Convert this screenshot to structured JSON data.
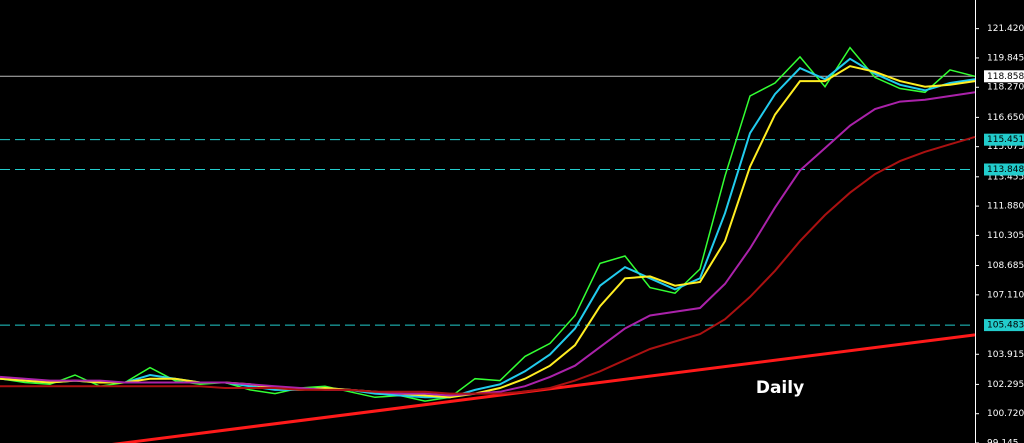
{
  "chart_data": {
    "type": "line",
    "annotation": "Daily",
    "categories": [
      null,
      null,
      null,
      null,
      null,
      null,
      null,
      null,
      null,
      null,
      null,
      null,
      null,
      null,
      null,
      null,
      null,
      null,
      null,
      null,
      null,
      null,
      null,
      null,
      null,
      null,
      null,
      null,
      null,
      null,
      null,
      null,
      null,
      null,
      null,
      null,
      null,
      null,
      null,
      null
    ],
    "series": [
      {
        "color": "#33ff33",
        "values": [
          102.6,
          102.4,
          102.3,
          102.8,
          102.2,
          102.4,
          103.2,
          102.5,
          102.3,
          102.4,
          102.0,
          101.8,
          102.1,
          102.2,
          101.9,
          101.6,
          101.7,
          101.4,
          101.6,
          102.6,
          102.5,
          103.8,
          104.5,
          106.0,
          108.8,
          109.2,
          107.5,
          107.2,
          108.5,
          113.5,
          117.8,
          118.5,
          119.9,
          118.3,
          120.4,
          118.8,
          118.2,
          118.0,
          119.2,
          118.86
        ]
      },
      {
        "color": "#22ccee",
        "values": [
          102.6,
          102.5,
          102.4,
          102.5,
          102.4,
          102.4,
          102.8,
          102.6,
          102.4,
          102.4,
          102.2,
          102.0,
          102.0,
          102.1,
          102.0,
          101.8,
          101.7,
          101.6,
          101.6,
          102.0,
          102.3,
          103.0,
          103.9,
          105.3,
          107.6,
          108.6,
          108.0,
          107.4,
          108.0,
          111.5,
          115.8,
          117.9,
          119.3,
          118.7,
          119.8,
          119.0,
          118.4,
          118.1,
          118.5,
          118.7
        ]
      },
      {
        "color": "#ffee22",
        "values": [
          102.6,
          102.5,
          102.4,
          102.5,
          102.4,
          102.4,
          102.6,
          102.6,
          102.4,
          102.4,
          102.3,
          102.1,
          102.0,
          102.1,
          102.0,
          101.9,
          101.8,
          101.7,
          101.6,
          101.8,
          102.1,
          102.6,
          103.3,
          104.4,
          106.5,
          108.0,
          108.1,
          107.6,
          107.8,
          110.0,
          114.0,
          116.8,
          118.6,
          118.6,
          119.4,
          119.1,
          118.6,
          118.3,
          118.4,
          118.6
        ]
      },
      {
        "color": "#aa22aa",
        "values": [
          102.7,
          102.6,
          102.5,
          102.5,
          102.5,
          102.4,
          102.4,
          102.4,
          102.4,
          102.4,
          102.3,
          102.2,
          102.1,
          102.0,
          102.0,
          101.9,
          101.8,
          101.8,
          101.7,
          101.8,
          101.9,
          102.2,
          102.7,
          103.3,
          104.3,
          105.3,
          106.0,
          106.2,
          106.4,
          107.7,
          109.6,
          111.8,
          113.8,
          115.0,
          116.2,
          117.1,
          117.5,
          117.6,
          117.8,
          118.0
        ]
      },
      {
        "color": "#aa1111",
        "values": [
          102.2,
          102.2,
          102.2,
          102.2,
          102.2,
          102.2,
          102.2,
          102.2,
          102.2,
          102.1,
          102.1,
          102.1,
          102.0,
          102.0,
          102.0,
          101.9,
          101.9,
          101.9,
          101.8,
          101.8,
          101.8,
          101.9,
          102.1,
          102.5,
          103.0,
          103.6,
          104.2,
          104.6,
          105.0,
          105.8,
          107.0,
          108.4,
          110.0,
          111.4,
          112.6,
          113.6,
          114.3,
          114.8,
          115.2,
          115.6
        ]
      }
    ],
    "trendline": {
      "color": "#ff1a1a",
      "values": [
        98.3,
        104.96
      ]
    },
    "levels": [
      {
        "value": 118.858,
        "label": "118.858",
        "color": "#bbbbbb",
        "dashed": false
      },
      {
        "value": 115.451,
        "label": "115.451",
        "color": "#22cccc",
        "dashed": true
      },
      {
        "value": 113.848,
        "label": "113.848",
        "color": "#22cccc",
        "dashed": true
      },
      {
        "value": 105.483,
        "label": "105.483",
        "color": "#22cccc",
        "dashed": true
      }
    ],
    "ylim": [
      99.145,
      122.96
    ],
    "yticks": [
      {
        "value": 121.42,
        "label": "121.420"
      },
      {
        "value": 119.845,
        "label": "119.845"
      },
      {
        "value": 118.27,
        "label": "118.270"
      },
      {
        "value": 116.65,
        "label": "116.650"
      },
      {
        "value": 115.075,
        "label": "115.075"
      },
      {
        "value": 113.455,
        "label": "113.455"
      },
      {
        "value": 111.88,
        "label": "111.880"
      },
      {
        "value": 110.305,
        "label": "110.305"
      },
      {
        "value": 108.685,
        "label": "108.685"
      },
      {
        "value": 107.11,
        "label": "107.110"
      },
      {
        "value": 103.915,
        "label": "103.915"
      },
      {
        "value": 102.295,
        "label": "102.295"
      },
      {
        "value": 100.72,
        "label": "100.720"
      },
      {
        "value": 99.145,
        "label": "99.145"
      }
    ]
  }
}
